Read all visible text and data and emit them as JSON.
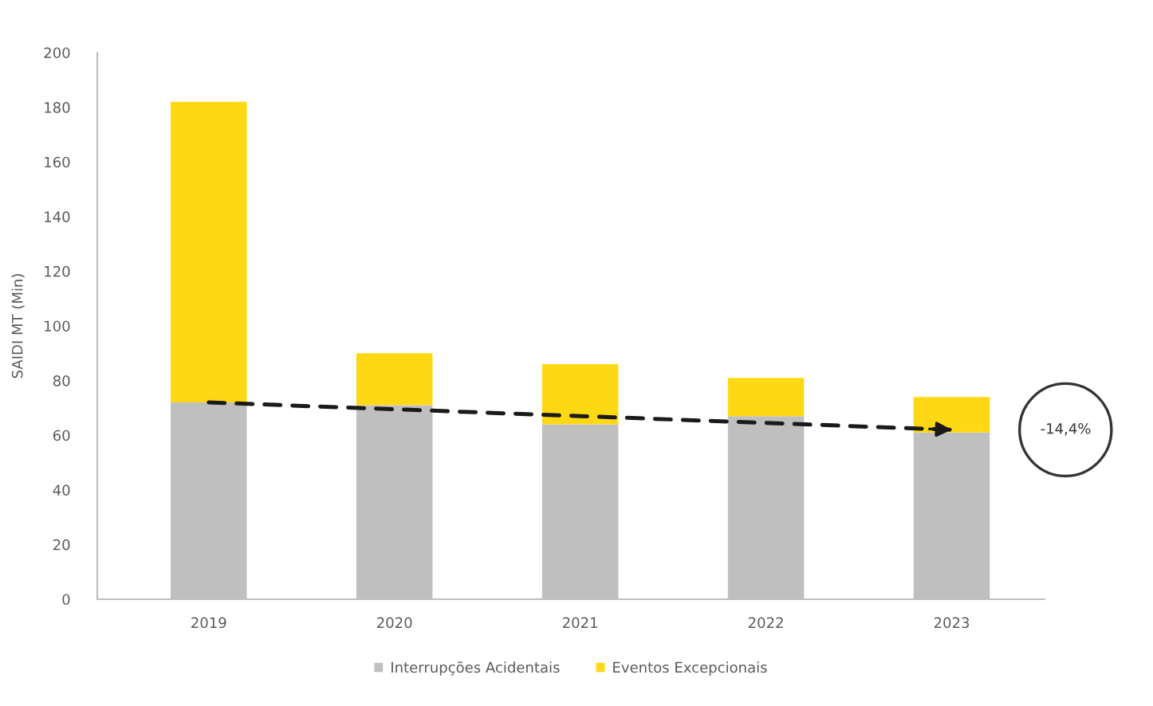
{
  "chart_data": {
    "type": "bar",
    "stacked": true,
    "ylabel": "SAIDI MT (Min)",
    "categories": [
      "2019",
      "2020",
      "2021",
      "2022",
      "2023"
    ],
    "series": [
      {
        "name": "Interrupções Acidentais",
        "color": "#bfbfbf",
        "values": [
          72,
          71,
          64,
          67,
          61
        ]
      },
      {
        "name": "Eventos Excepcionais",
        "color": "#ffd815",
        "values": [
          110,
          19,
          22,
          14,
          13
        ]
      },
      {
        "type": "line",
        "values": [
          72,
          69.5,
          67,
          64.5,
          62
        ],
        "color": "#1a1a1a",
        "line_style": "dashed"
      }
    ],
    "ylim": [
      0,
      200
    ],
    "yticks": [
      0,
      20,
      40,
      60,
      80,
      100,
      120,
      140,
      160,
      180,
      200
    ],
    "legend": "bottom",
    "annotations": [
      "-14,4%"
    ]
  }
}
